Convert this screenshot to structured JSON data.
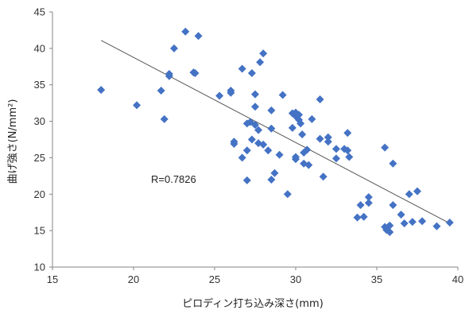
{
  "chart_data": {
    "type": "scatter",
    "xlabel": "ピロディン打ち込み深さ(mm)",
    "ylabel": "曲げ強さ(N/mm²)",
    "xlim": [
      15,
      40
    ],
    "ylim": [
      10,
      45
    ],
    "xticks": [
      15,
      20,
      25,
      30,
      35,
      40
    ],
    "yticks": [
      10,
      15,
      20,
      25,
      30,
      35,
      40,
      45
    ],
    "grid": false,
    "marker": "diamond",
    "marker_color": "#4472C4",
    "trendline_color": "#555555",
    "annotation": "R=0.7826",
    "trendline": {
      "x": [
        18,
        39.5
      ],
      "y": [
        41.1,
        16.0
      ]
    },
    "points": [
      [
        18.0,
        34.3
      ],
      [
        20.2,
        32.2
      ],
      [
        21.7,
        34.2
      ],
      [
        21.9,
        30.3
      ],
      [
        22.2,
        36.5
      ],
      [
        22.2,
        36.2
      ],
      [
        22.5,
        40.0
      ],
      [
        23.2,
        42.3
      ],
      [
        23.7,
        36.7
      ],
      [
        23.8,
        36.6
      ],
      [
        24.0,
        41.7
      ],
      [
        25.3,
        33.5
      ],
      [
        26.0,
        34.2
      ],
      [
        26.0,
        33.9
      ],
      [
        26.2,
        27.2
      ],
      [
        26.2,
        26.9
      ],
      [
        26.7,
        37.2
      ],
      [
        26.7,
        25.0
      ],
      [
        27.0,
        29.7
      ],
      [
        27.0,
        26.0
      ],
      [
        27.0,
        21.9
      ],
      [
        27.2,
        29.9
      ],
      [
        27.3,
        36.6
      ],
      [
        27.3,
        27.5
      ],
      [
        27.5,
        33.7
      ],
      [
        27.5,
        32.0
      ],
      [
        27.5,
        29.5
      ],
      [
        27.7,
        28.8
      ],
      [
        27.7,
        27.0
      ],
      [
        27.8,
        38.1
      ],
      [
        28.0,
        39.3
      ],
      [
        28.0,
        26.8
      ],
      [
        28.3,
        26.0
      ],
      [
        28.5,
        31.5
      ],
      [
        28.5,
        29.0
      ],
      [
        28.5,
        22.0
      ],
      [
        28.7,
        22.9
      ],
      [
        29.0,
        25.4
      ],
      [
        29.2,
        33.6
      ],
      [
        29.5,
        20.0
      ],
      [
        29.8,
        31.1
      ],
      [
        29.8,
        29.1
      ],
      [
        30.0,
        31.2
      ],
      [
        30.0,
        30.7
      ],
      [
        30.0,
        25.1
      ],
      [
        30.0,
        24.8
      ],
      [
        30.2,
        30.9
      ],
      [
        30.2,
        30.2
      ],
      [
        30.3,
        29.7
      ],
      [
        30.4,
        28.2
      ],
      [
        30.5,
        25.7
      ],
      [
        30.5,
        24.2
      ],
      [
        30.7,
        26.1
      ],
      [
        30.8,
        24.0
      ],
      [
        31.0,
        30.3
      ],
      [
        31.5,
        33.0
      ],
      [
        31.5,
        27.6
      ],
      [
        31.7,
        22.4
      ],
      [
        32.0,
        27.8
      ],
      [
        32.0,
        27.2
      ],
      [
        32.5,
        26.2
      ],
      [
        32.5,
        24.9
      ],
      [
        33.0,
        26.2
      ],
      [
        33.2,
        26.0
      ],
      [
        33.2,
        28.4
      ],
      [
        33.3,
        25.1
      ],
      [
        33.8,
        16.8
      ],
      [
        34.0,
        18.5
      ],
      [
        34.2,
        16.9
      ],
      [
        34.5,
        19.6
      ],
      [
        34.5,
        18.8
      ],
      [
        35.5,
        26.4
      ],
      [
        35.5,
        15.5
      ],
      [
        35.6,
        15.1
      ],
      [
        35.7,
        15.5
      ],
      [
        35.8,
        15.7
      ],
      [
        35.8,
        14.8
      ],
      [
        36.0,
        24.2
      ],
      [
        36.0,
        18.5
      ],
      [
        36.5,
        17.2
      ],
      [
        36.7,
        16.0
      ],
      [
        37.0,
        20.0
      ],
      [
        37.2,
        16.2
      ],
      [
        37.5,
        20.4
      ],
      [
        37.8,
        16.3
      ],
      [
        38.7,
        15.6
      ],
      [
        39.5,
        16.1
      ]
    ]
  }
}
